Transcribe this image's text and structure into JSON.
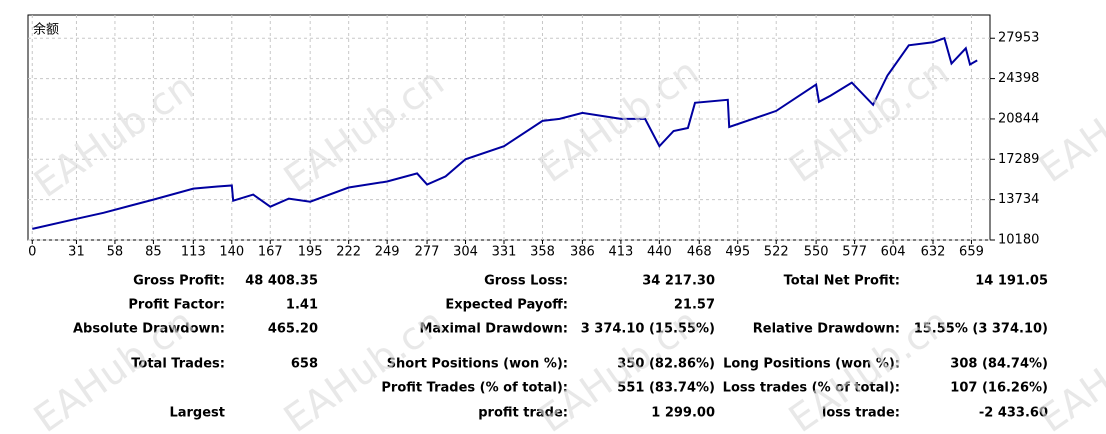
{
  "chart_data": {
    "type": "line",
    "title": "余额",
    "x": [
      0,
      31,
      50,
      85,
      113,
      130,
      140,
      141,
      155,
      167,
      180,
      195,
      222,
      249,
      270,
      277,
      290,
      304,
      331,
      358,
      370,
      386,
      413,
      430,
      440,
      450,
      460,
      465,
      488,
      489,
      522,
      550,
      552,
      560,
      575,
      590,
      600,
      615,
      632,
      640,
      645,
      655,
      658,
      663
    ],
    "series": [
      {
        "color": "#0000a0",
        "values": [
          11158,
          12046,
          12580,
          13735,
          14712,
          14890,
          14979,
          13646,
          14179,
          13113,
          13824,
          13557,
          14801,
          15334,
          16045,
          15067,
          15779,
          17290,
          18445,
          20667,
          20844,
          21378,
          20844,
          20844,
          18445,
          19778,
          20045,
          22266,
          22533,
          20133,
          21556,
          23866,
          22355,
          22889,
          24044,
          22089,
          24665,
          27331,
          27598,
          27953,
          25732,
          27065,
          25643,
          26000
        ]
      }
    ],
    "xlim": [
      -3,
      672
    ],
    "ylim": [
      10180,
      30000
    ],
    "xticks": [
      0,
      31,
      58,
      85,
      113,
      140,
      167,
      195,
      222,
      249,
      277,
      304,
      331,
      358,
      386,
      413,
      440,
      468,
      495,
      522,
      550,
      577,
      604,
      632,
      659
    ],
    "yticks": [
      10180,
      13734,
      17289,
      20844,
      24398,
      27953
    ],
    "grid": true
  },
  "watermark": "EAHub.cn",
  "stats": {
    "rows": [
      [
        [
          "Gross Profit:",
          "48 408.35"
        ],
        [
          "Gross Loss:",
          "34 217.30"
        ],
        [
          "Total Net Profit:",
          "14 191.05"
        ]
      ],
      [
        [
          "Profit Factor:",
          "1.41"
        ],
        [
          "Expected Payoff:",
          "21.57"
        ],
        null
      ],
      [
        [
          "Absolute Drawdown:",
          "465.20"
        ],
        [
          "Maximal Drawdown:",
          "3 374.10 (15.55%)"
        ],
        [
          "Relative Drawdown:",
          "15.55% (3 374.10)"
        ]
      ],
      [
        [
          "Total Trades:",
          "658"
        ],
        [
          "Short Positions (won %):",
          "350 (82.86%)"
        ],
        [
          "Long Positions (won %):",
          "308 (84.74%)"
        ]
      ],
      [
        null,
        [
          "Profit Trades (% of total):",
          "551 (83.74%)"
        ],
        [
          "Loss trades (% of total):",
          "107 (16.26%)"
        ]
      ],
      [
        [
          "Largest"
        ],
        [
          "profit trade:",
          "1 299.00"
        ],
        [
          "loss trade:",
          "-2 433.60"
        ]
      ]
    ]
  }
}
